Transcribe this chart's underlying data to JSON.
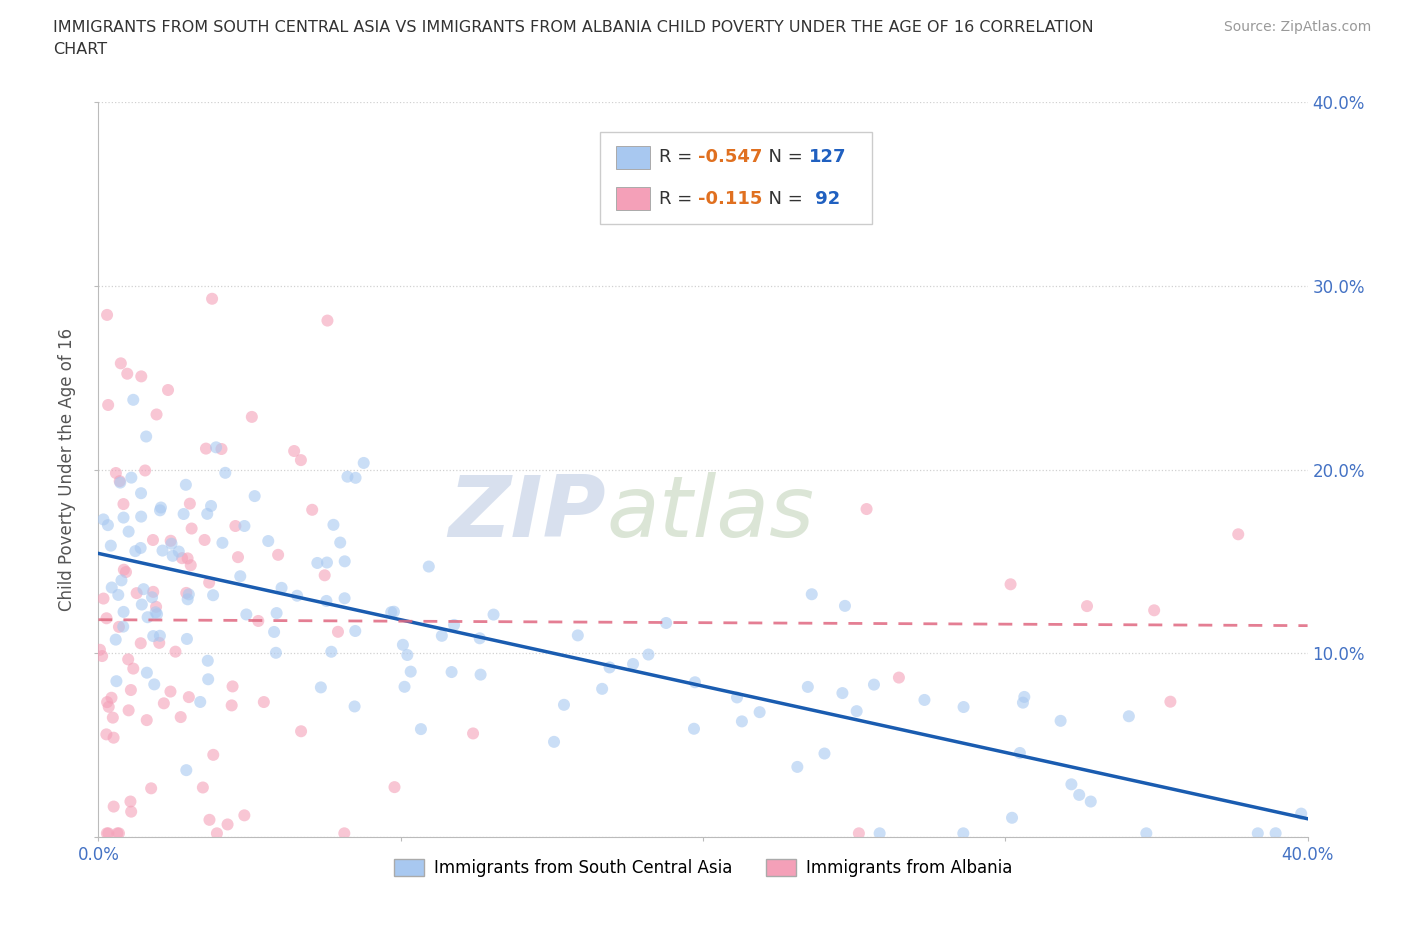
{
  "title_line1": "IMMIGRANTS FROM SOUTH CENTRAL ASIA VS IMMIGRANTS FROM ALBANIA CHILD POVERTY UNDER THE AGE OF 16 CORRELATION",
  "title_line2": "CHART",
  "source": "Source: ZipAtlas.com",
  "ylabel": "Child Poverty Under the Age of 16",
  "xlim": [
    0.0,
    0.4
  ],
  "ylim": [
    0.0,
    0.4
  ],
  "xticks": [
    0.0,
    0.1,
    0.2,
    0.3,
    0.4
  ],
  "yticks": [
    0.0,
    0.1,
    0.2,
    0.3,
    0.4
  ],
  "xticklabels": [
    "0.0%",
    "",
    "",
    "",
    "40.0%"
  ],
  "yticklabels_right": [
    "",
    "10.0%",
    "20.0%",
    "30.0%",
    "40.0%"
  ],
  "watermark_zip": "ZIP",
  "watermark_atlas": "atlas",
  "series1_label": "Immigrants from South Central Asia",
  "series2_label": "Immigrants from Albania",
  "series1_color": "#a8c8f0",
  "series2_color": "#f4a0b8",
  "series1_line_color": "#1a5cb0",
  "series2_line_color": "#e06880",
  "background_color": "#ffffff",
  "grid_color": "#cccccc",
  "title_color": "#333333",
  "axis_tick_color": "#4472c4",
  "legend_R_color": "#e07020",
  "legend_N_color": "#2060c0",
  "scatter_size": 75,
  "scatter_alpha": 0.6,
  "seed": 99
}
